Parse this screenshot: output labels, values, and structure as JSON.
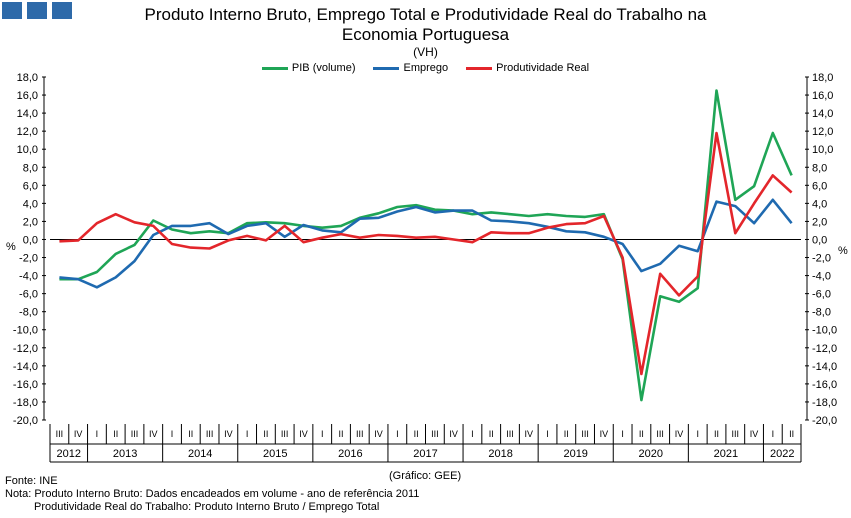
{
  "header": {
    "title_line1": "Produto Interno Bruto, Emprego Total e Produtividade Real do Trabalho na",
    "title_line2": "Economia Portuguesa",
    "subtitle": "(VH)"
  },
  "footer": {
    "source": "Fonte: INE",
    "note_line1": "Nota: Produto Interno Bruto: Dados encadeados em volume - ano de referência 2011",
    "note_line2": "Produtividade Real do Trabalho: Produto Interno Bruto / Emprego Total",
    "credit": "(Gráfico: GEE)"
  },
  "colors": {
    "logo": "#2e6aa9"
  },
  "chart_data": {
    "type": "line",
    "title": "Produto Interno Bruto, Emprego Total e Produtividade Real do Trabalho na Economia Portuguesa",
    "subtitle": "(VH)",
    "ylabel": "%",
    "ylim": [
      -20,
      18
    ],
    "yticks": [
      "18,0",
      "16,0",
      "14,0",
      "12,0",
      "10,0",
      "8,0",
      "6,0",
      "4,0",
      "2,0",
      "0,0",
      "-2,0",
      "-4,0",
      "-6,0",
      "-8,0",
      "-10,0",
      "-12,0",
      "-14,0",
      "-16,0",
      "-18,0",
      "-20,0"
    ],
    "grid": false,
    "legend_position": "top-center",
    "quarters": [
      "III",
      "IV",
      "I",
      "II",
      "III",
      "IV",
      "I",
      "II",
      "III",
      "IV",
      "I",
      "II",
      "III",
      "IV",
      "I",
      "II",
      "III",
      "IV",
      "I",
      "II",
      "III",
      "IV",
      "I",
      "II",
      "III",
      "IV",
      "I",
      "II",
      "III",
      "IV",
      "I",
      "II",
      "III",
      "IV",
      "I",
      "II",
      "III",
      "IV",
      "I",
      "II"
    ],
    "years": [
      {
        "label": "2012",
        "count": 2
      },
      {
        "label": "2013",
        "count": 4
      },
      {
        "label": "2014",
        "count": 4
      },
      {
        "label": "2015",
        "count": 4
      },
      {
        "label": "2016",
        "count": 4
      },
      {
        "label": "2017",
        "count": 4
      },
      {
        "label": "2018",
        "count": 4
      },
      {
        "label": "2019",
        "count": 4
      },
      {
        "label": "2020",
        "count": 4
      },
      {
        "label": "2021",
        "count": 4
      },
      {
        "label": "2022",
        "count": 2
      }
    ],
    "series": [
      {
        "name": "PIB (volume)",
        "color": "#1fa556",
        "values": [
          -4.4,
          -4.4,
          -3.6,
          -1.6,
          -0.6,
          2.1,
          1.1,
          0.7,
          0.9,
          0.7,
          1.8,
          1.9,
          1.8,
          1.5,
          1.3,
          1.5,
          2.4,
          2.9,
          3.6,
          3.8,
          3.3,
          3.2,
          2.8,
          3.0,
          2.8,
          2.6,
          2.8,
          2.6,
          2.5,
          2.8,
          -2.2,
          -17.8,
          -6.3,
          -6.9,
          -5.4,
          16.5,
          4.4,
          5.9,
          11.8,
          7.1
        ]
      },
      {
        "name": "Emprego",
        "color": "#1f6ab0",
        "values": [
          -4.2,
          -4.4,
          -5.3,
          -4.2,
          -2.4,
          0.5,
          1.5,
          1.5,
          1.8,
          0.6,
          1.5,
          1.8,
          0.3,
          1.6,
          1.0,
          0.8,
          2.3,
          2.4,
          3.1,
          3.6,
          3.0,
          3.2,
          3.2,
          2.1,
          2.0,
          1.8,
          1.4,
          0.9,
          0.8,
          0.3,
          -0.5,
          -3.5,
          -2.7,
          -0.7,
          -1.3,
          4.2,
          3.7,
          1.8,
          4.4,
          1.8
        ]
      },
      {
        "name": "Produtividade Real",
        "color": "#e3262b",
        "values": [
          -0.2,
          -0.1,
          1.8,
          2.8,
          1.9,
          1.5,
          -0.5,
          -0.9,
          -1.0,
          -0.1,
          0.4,
          -0.1,
          1.5,
          -0.3,
          0.2,
          0.6,
          0.2,
          0.5,
          0.4,
          0.2,
          0.3,
          0.0,
          -0.3,
          0.8,
          0.7,
          0.7,
          1.3,
          1.7,
          1.8,
          2.6,
          -2.0,
          -14.9,
          -3.8,
          -6.2,
          -4.1,
          11.8,
          0.7,
          4.0,
          7.1,
          5.2
        ]
      }
    ]
  }
}
